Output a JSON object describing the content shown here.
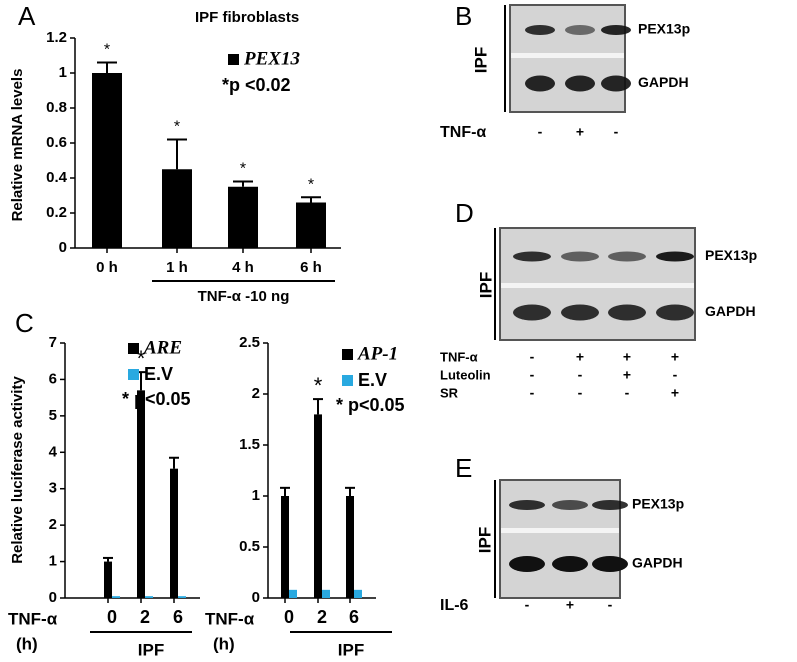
{
  "chart_data": [
    {
      "type": "bar",
      "panel": "A",
      "title": "IPF fibroblasts",
      "ylabel": "Relative mRNA levels",
      "categories": [
        "0 h",
        "1 h",
        "4 h",
        "6 h"
      ],
      "series": [
        {
          "name": "PEX13",
          "color": "#000000",
          "values": [
            1,
            0.45,
            0.35,
            0.26
          ],
          "errors": [
            0.06,
            0.17,
            0.03,
            0.03
          ]
        }
      ],
      "markers": [
        "*",
        "*",
        "*",
        "*"
      ],
      "annotation": "*p <0.02",
      "group_label": "TNF-α -10 ng",
      "ylim": [
        0,
        1.2
      ],
      "yticks": [
        0,
        0.2,
        0.4,
        0.6,
        0.8,
        1,
        1.2
      ]
    },
    {
      "type": "bar",
      "panel": "C",
      "ylabel": "Relative luciferase activity",
      "categories": [
        "0",
        "2",
        "6"
      ],
      "series": [
        {
          "name": "ARE",
          "color": "#000000",
          "values": [
            1,
            5.7,
            3.55
          ],
          "errors": [
            0.1,
            0.5,
            0.3
          ]
        },
        {
          "name": "E.V",
          "color": "#29a9e0",
          "values": [
            0.05,
            0.05,
            0.05
          ]
        }
      ],
      "markers": [
        null,
        "*",
        null
      ],
      "annotation": "* p<0.05",
      "group_label": "IPF",
      "x_label": "TNF-α",
      "x_label_unit": "(h)",
      "ylim": [
        0,
        7
      ],
      "yticks": [
        0,
        1,
        2,
        3,
        4,
        5,
        6,
        7
      ]
    },
    {
      "type": "bar",
      "categories": [
        "0",
        "2",
        "6"
      ],
      "series": [
        {
          "name": "AP-1",
          "color": "#000000",
          "values": [
            1,
            1.8,
            1
          ],
          "errors": [
            0.08,
            0.15,
            0.08
          ]
        },
        {
          "name": "E.V",
          "color": "#29a9e0",
          "values": [
            0.08,
            0.08,
            0.08
          ]
        }
      ],
      "markers": [
        null,
        "*",
        null
      ],
      "annotation": "* p<0.05",
      "group_label": "IPF",
      "x_label": "TNF-α",
      "x_label_unit": "(h)",
      "ylim": [
        0,
        2.5
      ],
      "yticks": [
        0,
        0.5,
        1,
        1.5,
        2,
        2.5
      ]
    }
  ],
  "blots": [
    {
      "panel": "B",
      "side_label": "IPF",
      "bands": [
        "PEX13p",
        "GAPDH"
      ],
      "treatments": [
        {
          "name": "TNF-α",
          "signs": [
            "-",
            "+",
            "-"
          ]
        }
      ]
    },
    {
      "panel": "D",
      "side_label": "IPF",
      "bands": [
        "PEX13p",
        "GAPDH"
      ],
      "treatments": [
        {
          "name": "TNF-α",
          "signs": [
            "-",
            "+",
            "+",
            "+"
          ]
        },
        {
          "name": "Luteolin",
          "signs": [
            "-",
            "-",
            "+",
            "-"
          ]
        },
        {
          "name": "SR",
          "signs": [
            "-",
            "-",
            "-",
            "+"
          ]
        }
      ]
    },
    {
      "panel": "E",
      "side_label": "IPF",
      "bands": [
        "PEX13p",
        "GAPDH"
      ],
      "treatments": [
        {
          "name": "IL-6",
          "signs": [
            "-",
            "+",
            "-"
          ]
        }
      ]
    }
  ]
}
